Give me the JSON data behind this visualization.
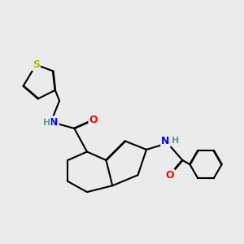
{
  "background_color": "#ebebeb",
  "atom_colors": {
    "S": "#b8b800",
    "N": "#0000ff",
    "O": "#ff0000",
    "C": "#000000",
    "H": "#5a9a9a"
  },
  "bond_color": "#000000",
  "bond_width": 1.5,
  "dbo": 0.012
}
